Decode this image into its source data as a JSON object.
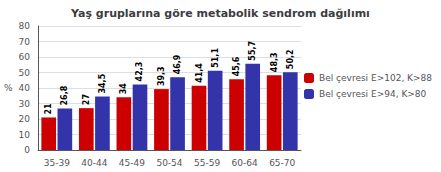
{
  "chart_data": {
    "type": "bar",
    "title": "Yaş gruplarına göre metabolik sendrom dağılımı",
    "categories": [
      "35-39",
      "40-44",
      "45-49",
      "50-54",
      "55-59",
      "60-64",
      "65-70"
    ],
    "ylabel": "%",
    "series": [
      {
        "name": "Bel çevresi E>102, K>88",
        "color": "#cc0000",
        "values": [
          21,
          27,
          34,
          39.3,
          41.4,
          45.6,
          48.3
        ],
        "value_labels": [
          "21",
          "27",
          "34",
          "39,3",
          "41,4",
          "45,6",
          "48,3"
        ]
      },
      {
        "name": "Bel çevresi E>94, K>80",
        "color": "#3333aa",
        "values": [
          26.8,
          34.5,
          42.3,
          46.9,
          51.1,
          55.7,
          50.2
        ],
        "value_labels": [
          "26,8",
          "34,5",
          "42,3",
          "46,9",
          "51,1",
          "55,7",
          "50,2"
        ]
      }
    ],
    "ylim": [
      0,
      80
    ],
    "yticks": [
      0,
      10,
      20,
      30,
      40,
      50,
      60,
      70,
      80
    ],
    "grid": true,
    "legend": "right",
    "data_labels": true
  }
}
